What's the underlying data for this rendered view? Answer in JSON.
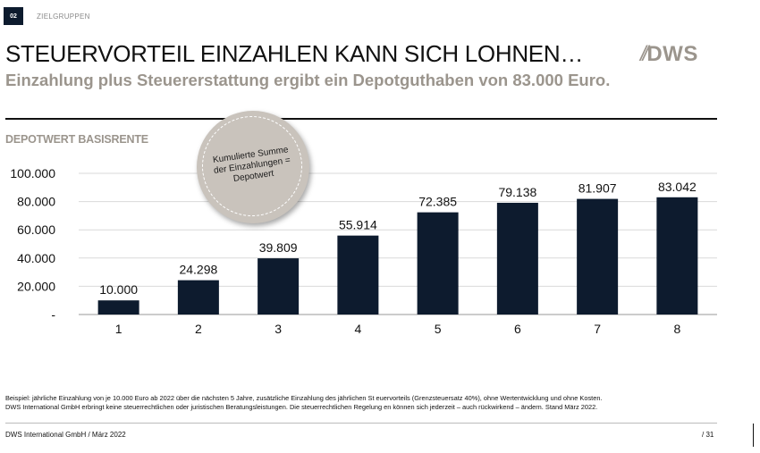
{
  "header": {
    "section_number": "02",
    "section_label": "ZIELGRUPPEN",
    "title": "STEUERVORTEIL EINZAHLEN KANN SICH LOHNEN…",
    "subtitle": "Einzahlung plus Steuererstattung ergibt ein Depotguthaben von 83.000 Euro.",
    "logo_slashes": "//",
    "logo_text": "DWS"
  },
  "callout": {
    "text": "Kumulierte Summe der Einzahlungen = Depotwert"
  },
  "colors": {
    "bar": "#0d1b2e",
    "accent_gray": "#9b958d",
    "callout_fill": "#c9c3bc"
  },
  "chart_data": {
    "type": "bar",
    "title": "DEPOTWERT BASISRENTE",
    "categories": [
      "1",
      "2",
      "3",
      "4",
      "5",
      "6",
      "7",
      "8"
    ],
    "values": [
      10000,
      24298,
      39809,
      55914,
      72385,
      79138,
      81907,
      83042
    ],
    "value_labels": [
      "10.000",
      "24.298",
      "39.809",
      "55.914",
      "72.385",
      "79.138",
      "81.907",
      "83.042"
    ],
    "y_ticks": [
      0,
      20000,
      40000,
      60000,
      80000,
      100000
    ],
    "y_tick_labels": [
      "-",
      "20.000",
      "40.000",
      "60.000",
      "80.000",
      "100.000"
    ],
    "ylim": [
      0,
      100000
    ],
    "grid": true,
    "xlabel": "",
    "ylabel": ""
  },
  "footnote": {
    "line1": "Beispiel: jährliche Einzahlung von je 10.000 Euro ab 2022 über die nächsten 5 Jahre, zusätzliche Einzahlung des jährlichen St     euervorteils (Grenzsteuersatz 40%), ohne Wertentwicklung und ohne Kosten.",
    "line2": "DWS International GmbH erbringt keine steuerrechtlichen oder juristischen Beratungsleistungen. Die steuerrechtlichen Regelung     en können sich jederzeit  – auch rückwirkend – ändern. Stand März 2022."
  },
  "footer": {
    "left": "DWS International GmbH / März 2022",
    "page": "/ 31"
  }
}
